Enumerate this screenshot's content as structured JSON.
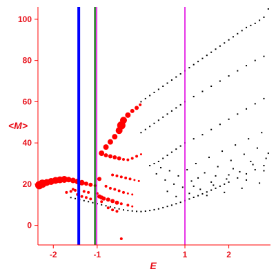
{
  "chart_data": {
    "type": "scatter",
    "xlabel": "E",
    "ylabel": "<M>",
    "xlim": [
      -2.35,
      2.95
    ],
    "ylim": [
      -9.5,
      106
    ],
    "x_ticks": [
      -2,
      -1,
      1,
      2
    ],
    "y_ticks": [
      0,
      20,
      40,
      60,
      80,
      100
    ],
    "x_tick_labels": [
      "-2",
      "-1",
      "1",
      "2"
    ],
    "y_tick_labels": [
      "0",
      "20",
      "40",
      "60",
      "80",
      "100"
    ],
    "grid": false,
    "legend": "none",
    "vertical_lines": [
      {
        "x": -1.42,
        "color": "#0000ff",
        "width": "thick"
      },
      {
        "x": -1.05,
        "color": "#006400",
        "width": "medium"
      },
      {
        "x": -1.01,
        "color": "#e000e0",
        "width": "thin"
      },
      {
        "x": 1.0,
        "color": "#e000e0",
        "width": "thin"
      }
    ],
    "series": [
      {
        "color": "#ff0000",
        "points": [
          [
            -2.32,
            19.5,
            6
          ],
          [
            -2.25,
            20.2,
            6
          ],
          [
            -2.15,
            20.8,
            5
          ],
          [
            -2.05,
            21.3,
            5
          ],
          [
            -1.95,
            21.8,
            5
          ],
          [
            -1.85,
            22.1,
            5
          ],
          [
            -1.75,
            22.3,
            5
          ],
          [
            -1.65,
            22.2,
            4
          ],
          [
            -1.55,
            21.8,
            4
          ],
          [
            -1.45,
            21.3,
            4
          ],
          [
            -1.35,
            20.7,
            4
          ],
          [
            -1.25,
            20.2,
            3
          ],
          [
            -1.15,
            19.7,
            3
          ],
          [
            -1.05,
            19.3,
            2
          ],
          [
            -0.95,
            22.5,
            3
          ],
          [
            -0.9,
            35.0,
            4
          ],
          [
            -0.8,
            38.0,
            4
          ],
          [
            -0.7,
            40.5,
            4
          ],
          [
            -0.6,
            43.0,
            4
          ],
          [
            -0.5,
            46.0,
            5
          ],
          [
            -0.45,
            48.5,
            6
          ],
          [
            -0.4,
            51.0,
            5
          ],
          [
            -0.3,
            53.5,
            4
          ],
          [
            -0.2,
            55.5,
            3
          ],
          [
            -0.1,
            57.0,
            3
          ],
          [
            -0.02,
            58.5,
            2
          ],
          [
            -0.8,
            34.0,
            3
          ],
          [
            -0.7,
            33.5,
            3
          ],
          [
            -0.6,
            33.0,
            3
          ],
          [
            -0.5,
            32.5,
            3
          ],
          [
            -0.4,
            32.0,
            2
          ],
          [
            -0.3,
            31.8,
            2
          ],
          [
            -0.2,
            32.5,
            2
          ],
          [
            -0.1,
            33.5,
            2
          ],
          [
            0.0,
            34.5,
            1.5
          ],
          [
            -1.7,
            16.0,
            2
          ],
          [
            -1.6,
            16.5,
            2
          ],
          [
            -1.5,
            17.0,
            2
          ],
          [
            -1.3,
            16.5,
            2
          ],
          [
            -1.2,
            16.0,
            2
          ],
          [
            -1.0,
            15.5,
            2
          ],
          [
            -0.95,
            14.0,
            3
          ],
          [
            -0.9,
            13.5,
            3
          ],
          [
            -0.85,
            13.0,
            3
          ],
          [
            -0.75,
            12.5,
            3
          ],
          [
            -0.65,
            11.8,
            3
          ],
          [
            -0.55,
            11.0,
            3
          ],
          [
            -0.45,
            10.5,
            2
          ],
          [
            -0.3,
            9.8,
            2
          ],
          [
            -0.2,
            9.2,
            1.5
          ],
          [
            -0.65,
            24.5,
            2
          ],
          [
            -0.55,
            24.0,
            2
          ],
          [
            -0.45,
            23.5,
            2
          ],
          [
            -0.35,
            23.0,
            2
          ],
          [
            -0.25,
            22.5,
            2
          ],
          [
            -0.15,
            22.0,
            1.5
          ],
          [
            -0.05,
            21.5,
            1.5
          ],
          [
            -0.8,
            19.0,
            2
          ],
          [
            -0.7,
            18.0,
            2
          ],
          [
            -0.6,
            17.5,
            2
          ],
          [
            -0.5,
            16.8,
            2
          ],
          [
            -0.4,
            16.0,
            2
          ],
          [
            -0.3,
            15.5,
            1.5
          ],
          [
            -0.2,
            15.0,
            1.5
          ],
          [
            -1.55,
            17.5,
            2
          ],
          [
            -1.45,
            15.0,
            2
          ],
          [
            -1.35,
            14.0,
            2
          ],
          [
            -1.25,
            13.5,
            2
          ],
          [
            -1.15,
            12.8,
            2
          ],
          [
            -0.75,
            8.5,
            2
          ],
          [
            -0.65,
            7.5,
            2
          ],
          [
            -0.55,
            6.8,
            2
          ],
          [
            -0.45,
            -6.5,
            2
          ],
          [
            -0.9,
            11.5,
            2
          ]
        ]
      },
      {
        "color": "#000000",
        "points": [
          [
            -1.6,
            13.5
          ],
          [
            -1.5,
            13.0
          ],
          [
            -1.4,
            12.5
          ],
          [
            -1.3,
            12.0
          ],
          [
            -1.2,
            11.5
          ],
          [
            -1.1,
            11.0
          ],
          [
            -1.0,
            10.5
          ],
          [
            -0.9,
            10.0
          ],
          [
            -0.8,
            9.5
          ],
          [
            -0.7,
            9.0
          ],
          [
            -0.6,
            8.5
          ],
          [
            -0.5,
            8.0
          ],
          [
            -0.4,
            7.5
          ],
          [
            -0.3,
            7.2
          ],
          [
            -0.2,
            7.0
          ],
          [
            -0.1,
            6.8
          ],
          [
            0.0,
            6.7
          ],
          [
            0.1,
            6.9
          ],
          [
            0.2,
            7.2
          ],
          [
            0.3,
            7.6
          ],
          [
            0.4,
            8.0
          ],
          [
            0.5,
            8.6
          ],
          [
            0.6,
            9.2
          ],
          [
            0.7,
            9.8
          ],
          [
            0.8,
            10.5
          ],
          [
            0.9,
            11.2
          ],
          [
            1.0,
            12.0
          ],
          [
            1.1,
            12.8
          ],
          [
            1.2,
            13.6
          ],
          [
            1.3,
            14.4
          ],
          [
            1.4,
            15.3
          ],
          [
            1.5,
            16.2
          ],
          [
            1.6,
            17.1
          ],
          [
            1.7,
            18.0
          ],
          [
            1.8,
            19.0
          ],
          [
            1.9,
            20.0
          ],
          [
            2.0,
            21.0
          ],
          [
            2.2,
            23.0
          ],
          [
            2.4,
            25.0
          ],
          [
            2.6,
            27.0
          ],
          [
            2.8,
            29.0
          ],
          [
            0.0,
            60.0
          ],
          [
            0.1,
            61.5
          ],
          [
            0.2,
            63.0
          ],
          [
            0.3,
            64.5
          ],
          [
            0.4,
            66.0
          ],
          [
            0.5,
            67.5
          ],
          [
            0.6,
            69.0
          ],
          [
            0.7,
            70.5
          ],
          [
            0.8,
            72.0
          ],
          [
            0.9,
            73.5
          ],
          [
            1.0,
            75.0
          ],
          [
            1.1,
            76.5
          ],
          [
            1.2,
            78.0
          ],
          [
            1.3,
            79.5
          ],
          [
            1.4,
            81.0
          ],
          [
            1.5,
            82.5
          ],
          [
            1.6,
            84.0
          ],
          [
            1.7,
            85.5
          ],
          [
            1.8,
            87.0
          ],
          [
            1.9,
            88.5
          ],
          [
            2.0,
            90.0
          ],
          [
            2.1,
            91.5
          ],
          [
            2.2,
            93.0
          ],
          [
            2.3,
            94.5
          ],
          [
            2.4,
            96.0
          ],
          [
            2.5,
            97.0
          ],
          [
            2.6,
            98.0
          ],
          [
            2.7,
            99.5
          ],
          [
            2.8,
            101.0
          ],
          [
            2.9,
            105.0
          ],
          [
            0.0,
            45.0
          ],
          [
            0.1,
            46.5
          ],
          [
            0.2,
            48.0
          ],
          [
            0.3,
            49.5
          ],
          [
            0.4,
            51.0
          ],
          [
            0.5,
            52.5
          ],
          [
            0.6,
            54.0
          ],
          [
            0.7,
            55.5
          ],
          [
            0.8,
            57.0
          ],
          [
            0.9,
            58.5
          ],
          [
            1.0,
            60.0
          ],
          [
            1.2,
            62.5
          ],
          [
            1.4,
            65.0
          ],
          [
            1.6,
            67.5
          ],
          [
            1.8,
            70.0
          ],
          [
            2.0,
            72.5
          ],
          [
            2.2,
            75.0
          ],
          [
            2.4,
            77.5
          ],
          [
            2.6,
            80.0
          ],
          [
            2.8,
            82.0
          ],
          [
            0.3,
            30.0
          ],
          [
            0.4,
            31.0
          ],
          [
            0.5,
            32.5
          ],
          [
            0.6,
            34.0
          ],
          [
            0.7,
            35.5
          ],
          [
            0.8,
            37.0
          ],
          [
            0.9,
            38.5
          ],
          [
            1.0,
            40.0
          ],
          [
            1.2,
            42.0
          ],
          [
            1.4,
            44.0
          ],
          [
            1.6,
            46.5
          ],
          [
            1.8,
            49.0
          ],
          [
            2.0,
            51.5
          ],
          [
            2.2,
            54.0
          ],
          [
            2.4,
            56.5
          ],
          [
            2.6,
            59.0
          ],
          [
            2.8,
            61.5
          ],
          [
            0.2,
            29.0
          ],
          [
            0.35,
            25.0
          ],
          [
            0.45,
            28.0
          ],
          [
            0.55,
            22.0
          ],
          [
            0.65,
            26.5
          ],
          [
            0.75,
            20.0
          ],
          [
            0.85,
            24.0
          ],
          [
            0.95,
            18.5
          ],
          [
            1.05,
            27.0
          ],
          [
            1.15,
            21.5
          ],
          [
            1.25,
            30.0
          ],
          [
            1.35,
            17.5
          ],
          [
            1.45,
            25.5
          ],
          [
            1.55,
            33.0
          ],
          [
            1.65,
            19.5
          ],
          [
            1.75,
            28.5
          ],
          [
            1.85,
            36.0
          ],
          [
            1.95,
            22.5
          ],
          [
            2.05,
            31.5
          ],
          [
            2.15,
            39.0
          ],
          [
            2.25,
            26.0
          ],
          [
            2.35,
            34.5
          ],
          [
            2.45,
            42.0
          ],
          [
            2.55,
            29.5
          ],
          [
            2.65,
            37.5
          ],
          [
            2.75,
            45.0
          ],
          [
            2.85,
            32.5
          ],
          [
            1.1,
            15.5
          ],
          [
            1.3,
            23.0
          ],
          [
            1.5,
            14.5
          ],
          [
            1.7,
            24.0
          ],
          [
            1.9,
            16.0
          ],
          [
            2.1,
            27.5
          ],
          [
            2.3,
            18.0
          ],
          [
            2.5,
            31.0
          ],
          [
            2.7,
            20.5
          ],
          [
            2.9,
            35.0
          ],
          [
            0.6,
            16.5
          ],
          [
            0.8,
            14.0
          ],
          [
            1.2,
            19.0
          ],
          [
            1.6,
            21.0
          ],
          [
            2.0,
            24.5
          ],
          [
            2.4,
            22.0
          ],
          [
            2.8,
            26.5
          ]
        ]
      }
    ]
  }
}
